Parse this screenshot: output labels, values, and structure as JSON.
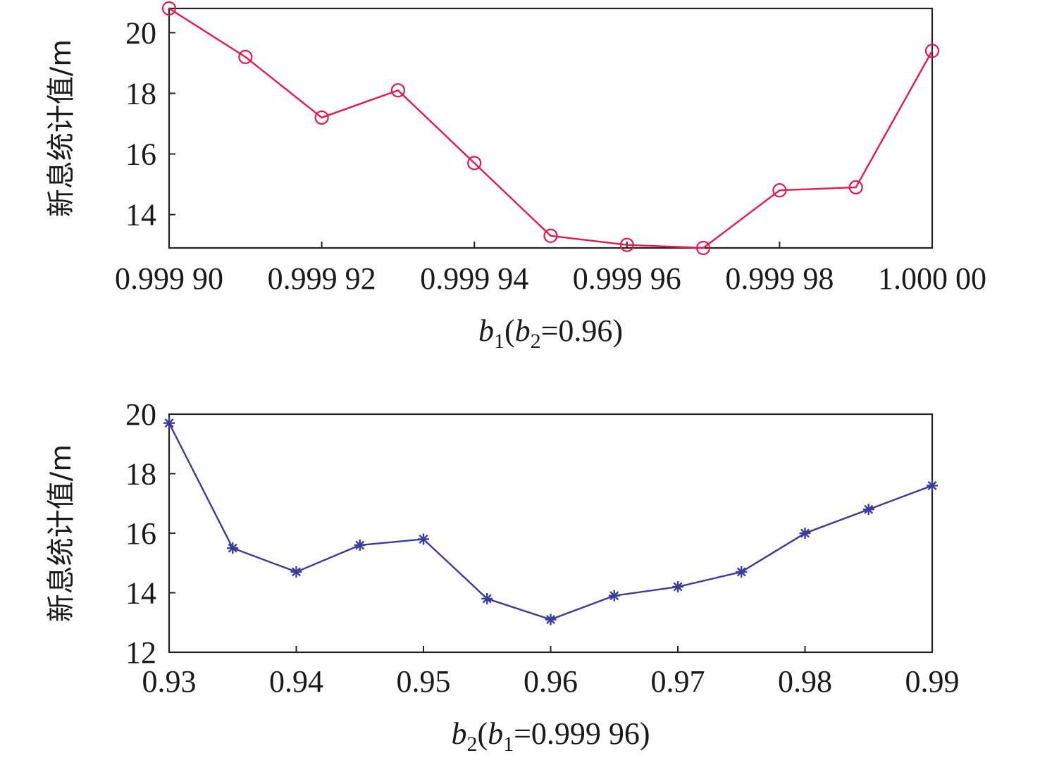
{
  "chart_data": [
    {
      "type": "line",
      "xlabel": {
        "var": "b",
        "sub": "1",
        "open": "(",
        "var2": "b",
        "sub2": "2",
        "rest": "=0.96)"
      },
      "ylabel": "新息统计值/m",
      "xlim": [
        0.9999,
        1.0
      ],
      "ylim": [
        12.9,
        20.8
      ],
      "xticks": [
        0.9999,
        0.99992,
        0.99994,
        0.99996,
        0.99998,
        1.0
      ],
      "xtick_labels": [
        "0.999 90",
        "0.999 92",
        "0.999 94",
        "0.999 96",
        "0.999 98",
        "1.000 00"
      ],
      "yticks": [
        14,
        16,
        18,
        20
      ],
      "ytick_labels": [
        "14",
        "16",
        "18",
        "20"
      ],
      "grid": false,
      "series": [
        {
          "marker": "circle",
          "color": "#e8174f",
          "x": [
            0.9999,
            0.99991,
            0.99992,
            0.99993,
            0.99994,
            0.99995,
            0.99996,
            0.99997,
            0.99998,
            0.99999,
            1.0
          ],
          "y": [
            20.8,
            19.2,
            17.2,
            18.1,
            15.7,
            13.3,
            13.0,
            12.9,
            14.8,
            14.9,
            19.4
          ]
        }
      ]
    },
    {
      "type": "line",
      "xlabel": {
        "var": "b",
        "sub": "2",
        "open": "(",
        "var2": "b",
        "sub2": "1",
        "rest": "=0.999 96)"
      },
      "ylabel": "新息统计值/m",
      "xlim": [
        0.93,
        0.99
      ],
      "ylim": [
        12,
        20
      ],
      "xticks": [
        0.93,
        0.94,
        0.95,
        0.96,
        0.97,
        0.98,
        0.99
      ],
      "xtick_labels": [
        "0.93",
        "0.94",
        "0.95",
        "0.96",
        "0.97",
        "0.98",
        "0.99"
      ],
      "yticks": [
        12,
        14,
        16,
        18,
        20
      ],
      "ytick_labels": [
        "12",
        "14",
        "16",
        "18",
        "20"
      ],
      "grid": false,
      "series": [
        {
          "marker": "asterisk",
          "color": "#3b3b9c",
          "x": [
            0.93,
            0.935,
            0.94,
            0.945,
            0.95,
            0.955,
            0.96,
            0.965,
            0.97,
            0.975,
            0.98,
            0.985,
            0.99
          ],
          "y": [
            19.7,
            15.5,
            14.7,
            15.6,
            15.8,
            13.8,
            13.1,
            13.9,
            14.2,
            14.7,
            16.0,
            16.8,
            17.6
          ]
        }
      ]
    }
  ]
}
